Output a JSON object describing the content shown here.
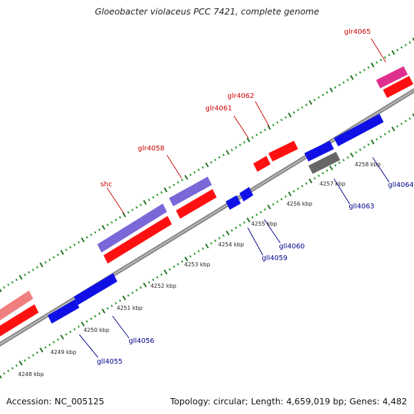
{
  "title": "Gloeobacter violaceus PCC 7421, complete genome",
  "footer": {
    "accession": "Accession: NC_005125",
    "topology": "Topology: circular; Length: 4,659,019 bp; Genes: 4,482"
  },
  "colors": {
    "backbone": "#8a8a8a",
    "forward_gene": "#ff1010",
    "reverse_gene": "#1010e6",
    "rna_or_pseudo_gene": "#7b68d8",
    "misc_gene": "#666666",
    "pink_gene": "#e0308f",
    "light_red_gene": "#f08080",
    "tick_dark": "#1d6f1d",
    "tick_light": "#2e9a2e",
    "forward_label": "#cc0000",
    "reverse_label": "#00008b"
  },
  "scale_labels": [
    "4248 kbp",
    "4249 kbp",
    "4250 kbp",
    "4251 kbp",
    "4252 kbp",
    "4253 kbp",
    "4254 kbp",
    "4255 kbp",
    "4256 kbp",
    "4257 kbp",
    "4258 kbp"
  ],
  "gene_labels": {
    "forward": [
      "shc",
      "glr4058",
      "glr4061",
      "glr4062",
      "glr4065"
    ],
    "reverse": [
      "gll4055",
      "gll4056",
      "gll4059",
      "gll4060",
      "gll4063",
      "gll4064"
    ]
  }
}
